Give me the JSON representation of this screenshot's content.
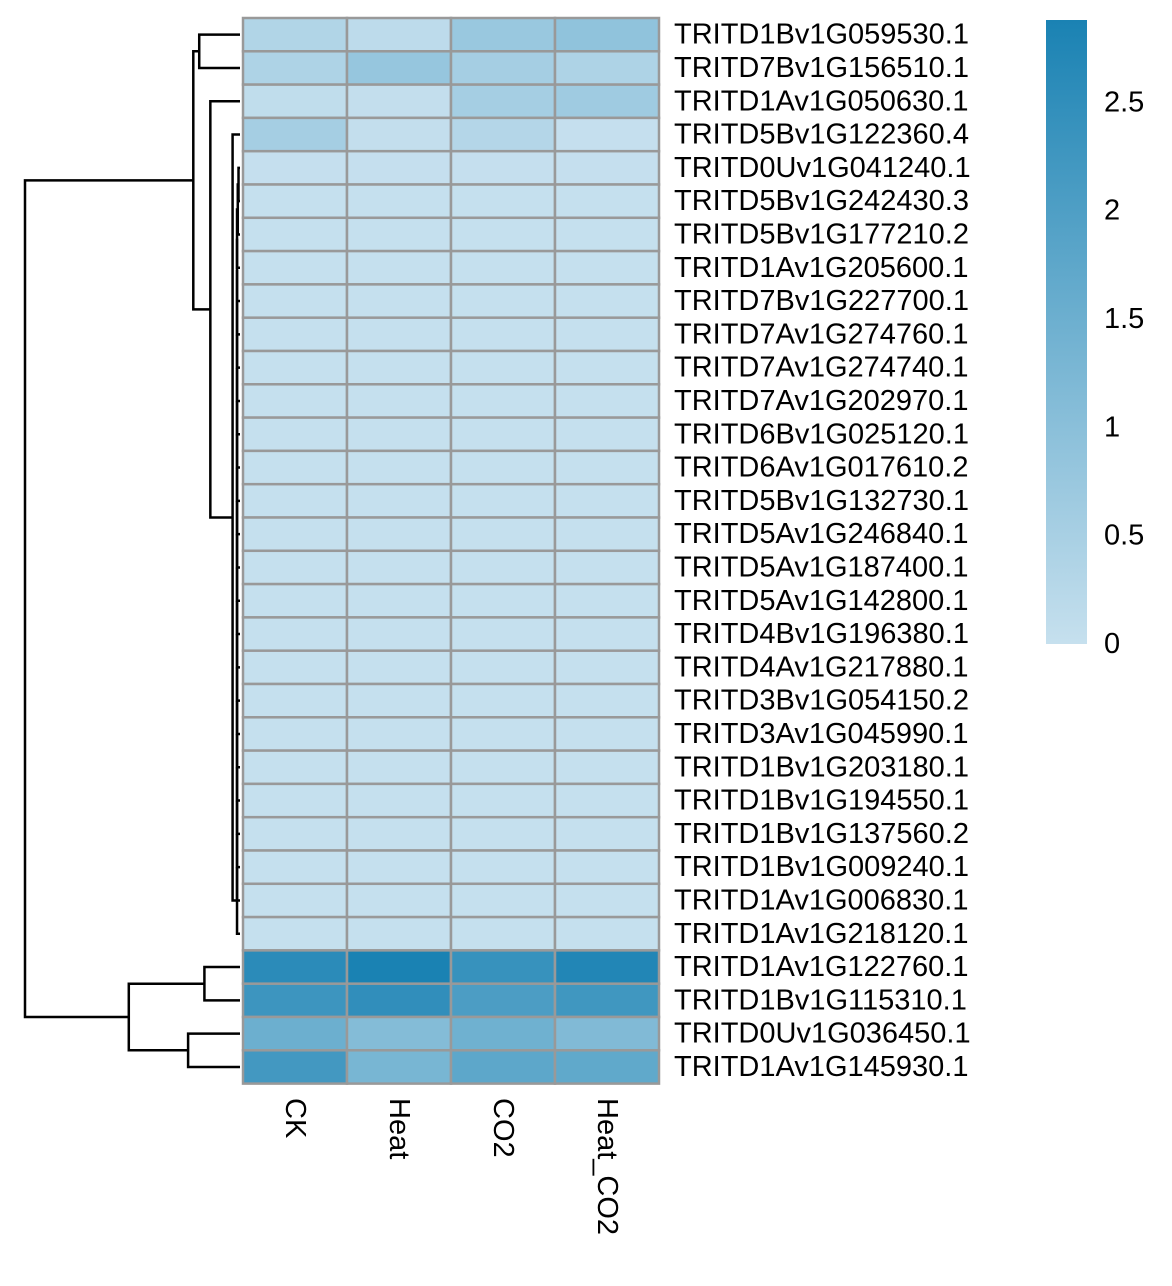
{
  "chart_data": {
    "type": "heatmap",
    "title": "",
    "xlabel": "",
    "ylabel": "",
    "columns": [
      "CK",
      "Heat",
      "CO2",
      "Heat_CO2"
    ],
    "rows": [
      "TRITD1Bv1G059530.1",
      "TRITD7Bv1G156510.1",
      "TRITD1Av1G050630.1",
      "TRITD5Bv1G122360.4",
      "TRITD0Uv1G041240.1",
      "TRITD5Bv1G242430.3",
      "TRITD5Bv1G177210.2",
      "TRITD1Av1G205600.1",
      "TRITD7Bv1G227700.1",
      "TRITD7Av1G274760.1",
      "TRITD7Av1G274740.1",
      "TRITD7Av1G202970.1",
      "TRITD6Bv1G025120.1",
      "TRITD6Av1G017610.2",
      "TRITD5Bv1G132730.1",
      "TRITD5Av1G246840.1",
      "TRITD5Av1G187400.1",
      "TRITD5Av1G142800.1",
      "TRITD4Bv1G196380.1",
      "TRITD4Av1G217880.1",
      "TRITD3Bv1G054150.2",
      "TRITD3Av1G045990.1",
      "TRITD1Bv1G203180.1",
      "TRITD1Bv1G194550.1",
      "TRITD1Bv1G137560.2",
      "TRITD1Bv1G009240.1",
      "TRITD1Av1G006830.1",
      "TRITD1Av1G218120.1",
      "TRITD1Av1G122760.1",
      "TRITD1Bv1G115310.1",
      "TRITD0Uv1G036450.1",
      "TRITD1Av1G145930.1"
    ],
    "values": [
      [
        0.35,
        0.15,
        0.75,
        0.9
      ],
      [
        0.4,
        0.8,
        0.55,
        0.4
      ],
      [
        0.1,
        0.05,
        0.55,
        0.65
      ],
      [
        0.55,
        0.05,
        0.3,
        0.02
      ],
      [
        0.02,
        0.02,
        0.02,
        0.02
      ],
      [
        0.01,
        0.01,
        0.01,
        0.01
      ],
      [
        0.01,
        0.01,
        0.01,
        0.01
      ],
      [
        0.01,
        0.01,
        0.01,
        0.01
      ],
      [
        0.01,
        0.01,
        0.01,
        0.01
      ],
      [
        0.01,
        0.01,
        0.01,
        0.01
      ],
      [
        0.01,
        0.01,
        0.01,
        0.01
      ],
      [
        0.01,
        0.01,
        0.01,
        0.01
      ],
      [
        0.01,
        0.01,
        0.01,
        0.01
      ],
      [
        0.01,
        0.01,
        0.01,
        0.01
      ],
      [
        0.01,
        0.01,
        0.01,
        0.01
      ],
      [
        0.01,
        0.01,
        0.01,
        0.01
      ],
      [
        0.01,
        0.01,
        0.01,
        0.01
      ],
      [
        0.01,
        0.01,
        0.01,
        0.01
      ],
      [
        0.01,
        0.01,
        0.01,
        0.01
      ],
      [
        0.01,
        0.01,
        0.01,
        0.01
      ],
      [
        0.01,
        0.01,
        0.01,
        0.01
      ],
      [
        0.01,
        0.01,
        0.01,
        0.01
      ],
      [
        0.01,
        0.01,
        0.01,
        0.01
      ],
      [
        0.01,
        0.01,
        0.01,
        0.01
      ],
      [
        0.01,
        0.01,
        0.01,
        0.01
      ],
      [
        0.01,
        0.01,
        0.01,
        0.01
      ],
      [
        0.01,
        0.01,
        0.01,
        0.01
      ],
      [
        0.01,
        0.01,
        0.01,
        0.01
      ],
      [
        2.6,
        2.88,
        2.4,
        2.75
      ],
      [
        2.3,
        2.5,
        2.05,
        2.25
      ],
      [
        1.5,
        1.1,
        1.45,
        1.15
      ],
      [
        2.2,
        1.3,
        1.75,
        1.7
      ]
    ],
    "color_scale": {
      "min": 0,
      "max": 2.88,
      "low_color": "#c6e0ee",
      "high_color": "#1a82b3"
    },
    "cell_border_color": "#999999",
    "legend": {
      "placement": "right",
      "ticks": [
        0,
        0.5,
        1,
        1.5,
        2,
        2.5
      ],
      "tick_labels": [
        "0",
        "0.5",
        "1",
        "1.5",
        "2",
        "2.5"
      ]
    },
    "row_dendrogram": {
      "shown": true,
      "placement": "left",
      "merges": [
        [
          -5,
          -6,
          0.02
        ],
        [
          1,
          -7,
          0.03
        ],
        [
          2,
          -8,
          0.04
        ],
        [
          3,
          -9,
          0.04
        ],
        [
          4,
          -10,
          0.04
        ],
        [
          5,
          -11,
          0.04
        ],
        [
          6,
          -12,
          0.04
        ],
        [
          7,
          -13,
          0.04
        ],
        [
          8,
          -14,
          0.04
        ],
        [
          9,
          -15,
          0.04
        ],
        [
          10,
          -16,
          0.04
        ],
        [
          11,
          -17,
          0.04
        ],
        [
          12,
          -18,
          0.04
        ],
        [
          13,
          -19,
          0.04
        ],
        [
          14,
          -20,
          0.04
        ],
        [
          15,
          -21,
          0.04
        ],
        [
          16,
          -22,
          0.04
        ],
        [
          17,
          -23,
          0.04
        ],
        [
          18,
          -24,
          0.04
        ],
        [
          19,
          -25,
          0.04
        ],
        [
          20,
          -26,
          0.04
        ],
        [
          21,
          -27,
          0.04
        ],
        [
          22,
          -28,
          0.04
        ],
        [
          -4,
          23,
          0.1
        ],
        [
          -3,
          24,
          0.4
        ],
        [
          -1,
          -2,
          0.55
        ],
        [
          26,
          25,
          0.63
        ],
        [
          -29,
          -30,
          0.48
        ],
        [
          -31,
          -32,
          0.7
        ],
        [
          28,
          29,
          1.5
        ],
        [
          27,
          30,
          2.9
        ]
      ]
    }
  }
}
